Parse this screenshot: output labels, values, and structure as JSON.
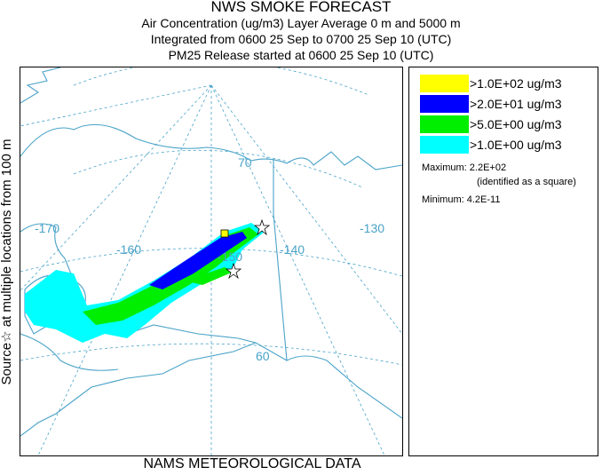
{
  "header": {
    "title": "NWS SMOKE FORECAST",
    "line1": "Air Concentration (ug/m3) Layer Average     0 m and  5000 m",
    "line2": "Integrated from 0600 25 Sep to 0700 25 Sep 10 (UTC)",
    "line3": "PM25 Release started at 0600 25 Sep 10 (UTC)"
  },
  "side_label": "Source☆ at multiple locations    from   100 m",
  "footer": "NAMS METEOROLOGICAL DATA",
  "map": {
    "latitude_labels": [
      "70",
      "60"
    ],
    "longitude_labels": [
      "-170",
      "-160",
      "-150",
      "-140",
      "-130"
    ],
    "graticule_color": "#4aa3c8",
    "coast_color": "#4aa3c8"
  },
  "legend": {
    "items": [
      {
        "label": ">1.0E+02 ug/m3",
        "color": "#ffff00"
      },
      {
        "label": ">2.0E+01 ug/m3",
        "color": "#0000ff"
      },
      {
        "label": ">5.0E+00 ug/m3",
        "color": "#00ee00"
      },
      {
        "label": ">1.0E+00 ug/m3",
        "color": "#00ffff"
      }
    ],
    "maximum_label": "Maximum:",
    "maximum_value": "2.2E+02",
    "maximum_note": "(identified as a square)",
    "minimum_label": "Minimum:",
    "minimum_value": "4.2E-11"
  }
}
